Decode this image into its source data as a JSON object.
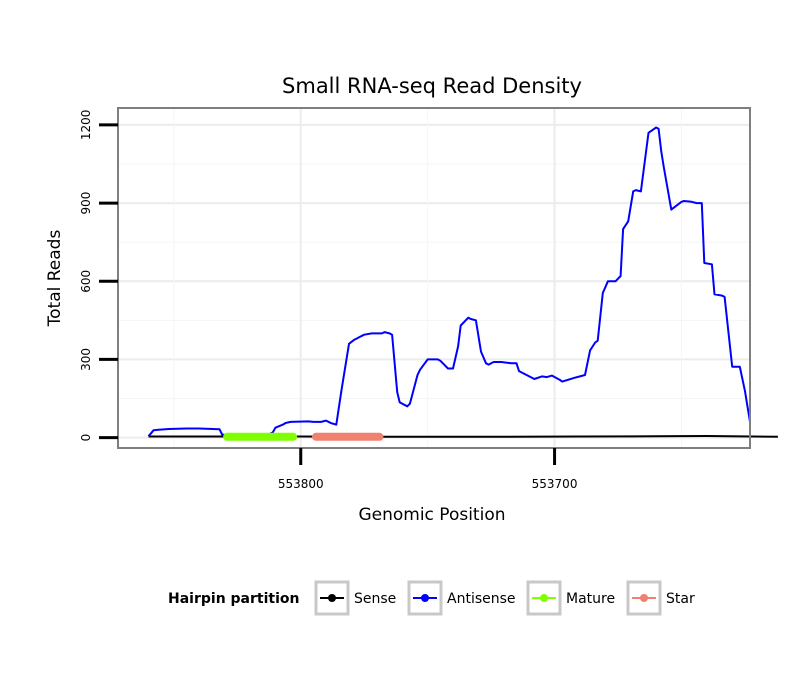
{
  "chart_data": {
    "type": "line",
    "title": "Small RNA-seq Read Density",
    "xlabel": "Genomic Position",
    "ylabel": "Total Reads",
    "x_reversed": true,
    "xlim": [
      553872,
      553623
    ],
    "ylim": [
      -40,
      1265
    ],
    "xticks": [
      553800,
      553700
    ],
    "xtick_labels": [
      "553800",
      "553700"
    ],
    "yticks": [
      0,
      300,
      600,
      900,
      1200
    ],
    "ytick_labels": [
      "0",
      "300",
      "600",
      "900",
      "1200"
    ],
    "grid": true,
    "legend": {
      "title": "Hairpin partition",
      "position": "bottom",
      "entries": [
        {
          "name": "Sense",
          "color": "#000000"
        },
        {
          "name": "Antisense",
          "color": "#0000ff"
        },
        {
          "name": "Mature",
          "color": "#7fff00"
        },
        {
          "name": "Star",
          "color": "#f08070"
        }
      ]
    },
    "series": [
      {
        "name": "Sense",
        "color": "#000000",
        "x": [
          553860,
          553800,
          553760,
          553720,
          553690,
          553660,
          553640,
          553612
        ],
        "y": [
          4,
          4,
          3,
          3,
          4,
          5,
          6,
          3
        ]
      },
      {
        "name": "Antisense",
        "color": "#0000ff",
        "x": [
          553860,
          553858,
          553856,
          553852,
          553845,
          553840,
          553832,
          553831,
          553829,
          553827,
          553825,
          553820,
          553814,
          553811,
          553810,
          553807,
          553806,
          553804,
          553797,
          553795,
          553792,
          553790,
          553788,
          553786,
          553784,
          553781,
          553779,
          553778,
          553777,
          553775,
          553772,
          553771,
          553768,
          553767,
          553765,
          553764,
          553762,
          553761,
          553758,
          553757,
          553754,
          553753,
          553750,
          553748,
          553746,
          553745,
          553742,
          553740,
          553738,
          553737,
          553734,
          553733,
          553731,
          553729,
          553727,
          553726,
          553724,
          553721,
          553717,
          553715,
          553714,
          553711,
          553708,
          553705,
          553703,
          553701,
          553698,
          553697,
          553692,
          553690,
          553688,
          553686,
          553684,
          553683,
          553681,
          553679,
          553677,
          553676,
          553674,
          553673,
          553671,
          553669,
          553668,
          553666,
          553663,
          553660,
          553659,
          553658,
          553657,
          553654,
          553650,
          553649,
          553646,
          553644,
          553642,
          553641,
          553638,
          553637,
          553634,
          553633,
          553630,
          553627,
          553625,
          553623
        ],
        "y": [
          5,
          28,
          30,
          33,
          35,
          35,
          32,
          12,
          8,
          5,
          3,
          3,
          6,
          20,
          38,
          50,
          56,
          60,
          62,
          60,
          60,
          65,
          55,
          50,
          180,
          360,
          375,
          380,
          385,
          395,
          400,
          400,
          400,
          405,
          400,
          395,
          175,
          135,
          120,
          130,
          240,
          260,
          300,
          300,
          300,
          295,
          265,
          265,
          350,
          430,
          460,
          455,
          450,
          330,
          285,
          280,
          290,
          290,
          285,
          285,
          255,
          240,
          225,
          235,
          232,
          238,
          222,
          215,
          230,
          235,
          240,
          335,
          365,
          372,
          555,
          600,
          600,
          600,
          620,
          800,
          830,
          945,
          950,
          945,
          1170,
          1190,
          1185,
          1100,
          1040,
          875,
          905,
          908,
          905,
          900,
          900,
          670,
          665,
          550,
          545,
          540,
          272,
          272,
          180,
          60
        ]
      }
    ],
    "segments": [
      {
        "name": "Mature",
        "color": "#7fff00",
        "x_start": 553829,
        "x_end": 553803,
        "y": 3
      },
      {
        "name": "Star",
        "color": "#f08070",
        "x_start": 553794,
        "x_end": 553769,
        "y": 3
      }
    ]
  }
}
